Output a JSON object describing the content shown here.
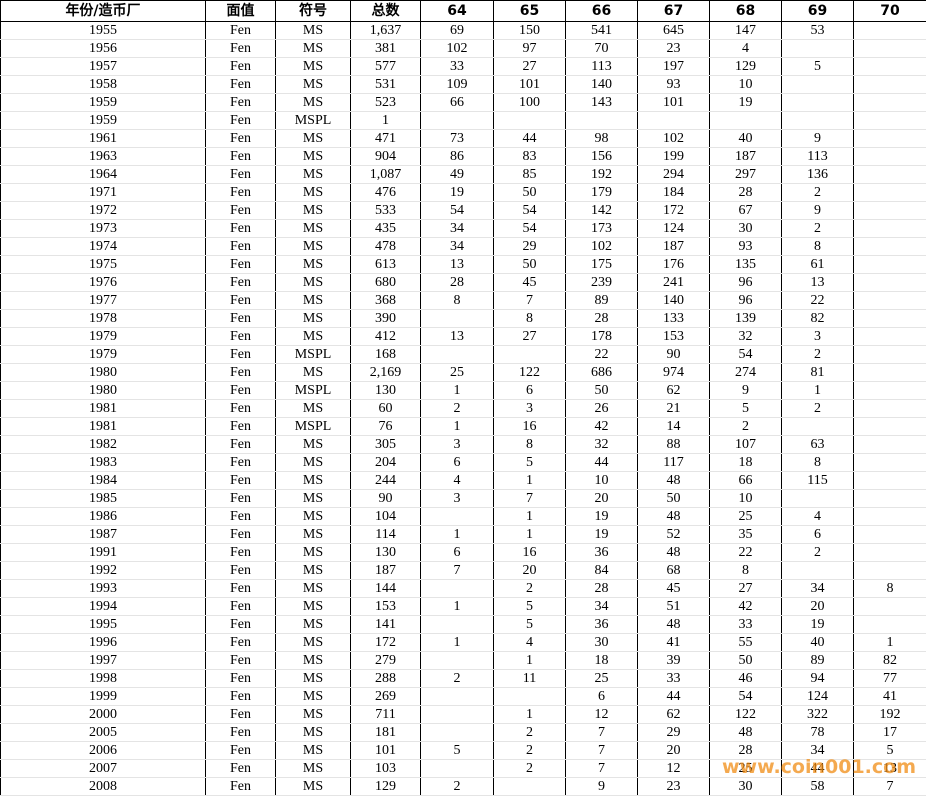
{
  "table": {
    "header": [
      "年份/造币厂",
      "面值",
      "符号",
      "总数",
      "64",
      "65",
      "66",
      "67",
      "68",
      "69",
      "70"
    ],
    "rows": [
      [
        "1955",
        "Fen",
        "MS",
        "1,637",
        "69",
        "150",
        "541",
        "645",
        "147",
        "53",
        null
      ],
      [
        "1956",
        "Fen",
        "MS",
        "381",
        "102",
        "97",
        "70",
        "23",
        "4",
        null,
        null
      ],
      [
        "1957",
        "Fen",
        "MS",
        "577",
        "33",
        "27",
        "113",
        "197",
        "129",
        "5",
        null
      ],
      [
        "1958",
        "Fen",
        "MS",
        "531",
        "109",
        "101",
        "140",
        "93",
        "10",
        null,
        null
      ],
      [
        "1959",
        "Fen",
        "MS",
        "523",
        "66",
        "100",
        "143",
        "101",
        "19",
        null,
        null
      ],
      [
        "1959",
        "Fen",
        "MSPL",
        "1",
        null,
        null,
        null,
        null,
        null,
        null,
        null
      ],
      [
        "1961",
        "Fen",
        "MS",
        "471",
        "73",
        "44",
        "98",
        "102",
        "40",
        "9",
        null
      ],
      [
        "1963",
        "Fen",
        "MS",
        "904",
        "86",
        "83",
        "156",
        "199",
        "187",
        "113",
        null
      ],
      [
        "1964",
        "Fen",
        "MS",
        "1,087",
        "49",
        "85",
        "192",
        "294",
        "297",
        "136",
        null
      ],
      [
        "1971",
        "Fen",
        "MS",
        "476",
        "19",
        "50",
        "179",
        "184",
        "28",
        "2",
        null
      ],
      [
        "1972",
        "Fen",
        "MS",
        "533",
        "54",
        "54",
        "142",
        "172",
        "67",
        "9",
        null
      ],
      [
        "1973",
        "Fen",
        "MS",
        "435",
        "34",
        "54",
        "173",
        "124",
        "30",
        "2",
        null
      ],
      [
        "1974",
        "Fen",
        "MS",
        "478",
        "34",
        "29",
        "102",
        "187",
        "93",
        "8",
        null
      ],
      [
        "1975",
        "Fen",
        "MS",
        "613",
        "13",
        "50",
        "175",
        "176",
        "135",
        "61",
        null
      ],
      [
        "1976",
        "Fen",
        "MS",
        "680",
        "28",
        "45",
        "239",
        "241",
        "96",
        "13",
        null
      ],
      [
        "1977",
        "Fen",
        "MS",
        "368",
        "8",
        "7",
        "89",
        "140",
        "96",
        "22",
        null
      ],
      [
        "1978",
        "Fen",
        "MS",
        "390",
        null,
        "8",
        "28",
        "133",
        "139",
        "82",
        null
      ],
      [
        "1979",
        "Fen",
        "MS",
        "412",
        "13",
        "27",
        "178",
        "153",
        "32",
        "3",
        null
      ],
      [
        "1979",
        "Fen",
        "MSPL",
        "168",
        null,
        null,
        "22",
        "90",
        "54",
        "2",
        null
      ],
      [
        "1980",
        "Fen",
        "MS",
        "2,169",
        "25",
        "122",
        "686",
        "974",
        "274",
        "81",
        null
      ],
      [
        "1980",
        "Fen",
        "MSPL",
        "130",
        "1",
        "6",
        "50",
        "62",
        "9",
        "1",
        null
      ],
      [
        "1981",
        "Fen",
        "MS",
        "60",
        "2",
        "3",
        "26",
        "21",
        "5",
        "2",
        null
      ],
      [
        "1981",
        "Fen",
        "MSPL",
        "76",
        "1",
        "16",
        "42",
        "14",
        "2",
        null,
        null
      ],
      [
        "1982",
        "Fen",
        "MS",
        "305",
        "3",
        "8",
        "32",
        "88",
        "107",
        "63",
        null
      ],
      [
        "1983",
        "Fen",
        "MS",
        "204",
        "6",
        "5",
        "44",
        "117",
        "18",
        "8",
        null
      ],
      [
        "1984",
        "Fen",
        "MS",
        "244",
        "4",
        "1",
        "10",
        "48",
        "66",
        "115",
        null
      ],
      [
        "1985",
        "Fen",
        "MS",
        "90",
        "3",
        "7",
        "20",
        "50",
        "10",
        null,
        null
      ],
      [
        "1986",
        "Fen",
        "MS",
        "104",
        null,
        "1",
        "19",
        "48",
        "25",
        "4",
        null
      ],
      [
        "1987",
        "Fen",
        "MS",
        "114",
        "1",
        "1",
        "19",
        "52",
        "35",
        "6",
        null
      ],
      [
        "1991",
        "Fen",
        "MS",
        "130",
        "6",
        "16",
        "36",
        "48",
        "22",
        "2",
        null
      ],
      [
        "1992",
        "Fen",
        "MS",
        "187",
        "7",
        "20",
        "84",
        "68",
        "8",
        null,
        null
      ],
      [
        "1993",
        "Fen",
        "MS",
        "144",
        null,
        "2",
        "28",
        "45",
        "27",
        "34",
        "8"
      ],
      [
        "1994",
        "Fen",
        "MS",
        "153",
        "1",
        "5",
        "34",
        "51",
        "42",
        "20",
        null
      ],
      [
        "1995",
        "Fen",
        "MS",
        "141",
        null,
        "5",
        "36",
        "48",
        "33",
        "19",
        null
      ],
      [
        "1996",
        "Fen",
        "MS",
        "172",
        "1",
        "4",
        "30",
        "41",
        "55",
        "40",
        "1"
      ],
      [
        "1997",
        "Fen",
        "MS",
        "279",
        null,
        "1",
        "18",
        "39",
        "50",
        "89",
        "82"
      ],
      [
        "1998",
        "Fen",
        "MS",
        "288",
        "2",
        "11",
        "25",
        "33",
        "46",
        "94",
        "77"
      ],
      [
        "1999",
        "Fen",
        "MS",
        "269",
        null,
        null,
        "6",
        "44",
        "54",
        "124",
        "41"
      ],
      [
        "2000",
        "Fen",
        "MS",
        "711",
        null,
        "1",
        "12",
        "62",
        "122",
        "322",
        "192"
      ],
      [
        "2005",
        "Fen",
        "MS",
        "181",
        null,
        "2",
        "7",
        "29",
        "48",
        "78",
        "17"
      ],
      [
        "2006",
        "Fen",
        "MS",
        "101",
        "5",
        "2",
        "7",
        "20",
        "28",
        "34",
        "5"
      ],
      [
        "2007",
        "Fen",
        "MS",
        "103",
        null,
        "2",
        "7",
        "12",
        "25",
        "44",
        "13"
      ],
      [
        "2008",
        "Fen",
        "MS",
        "129",
        "2",
        null,
        "9",
        "23",
        "30",
        "58",
        "7"
      ]
    ]
  },
  "watermark": "www.coin001.com"
}
